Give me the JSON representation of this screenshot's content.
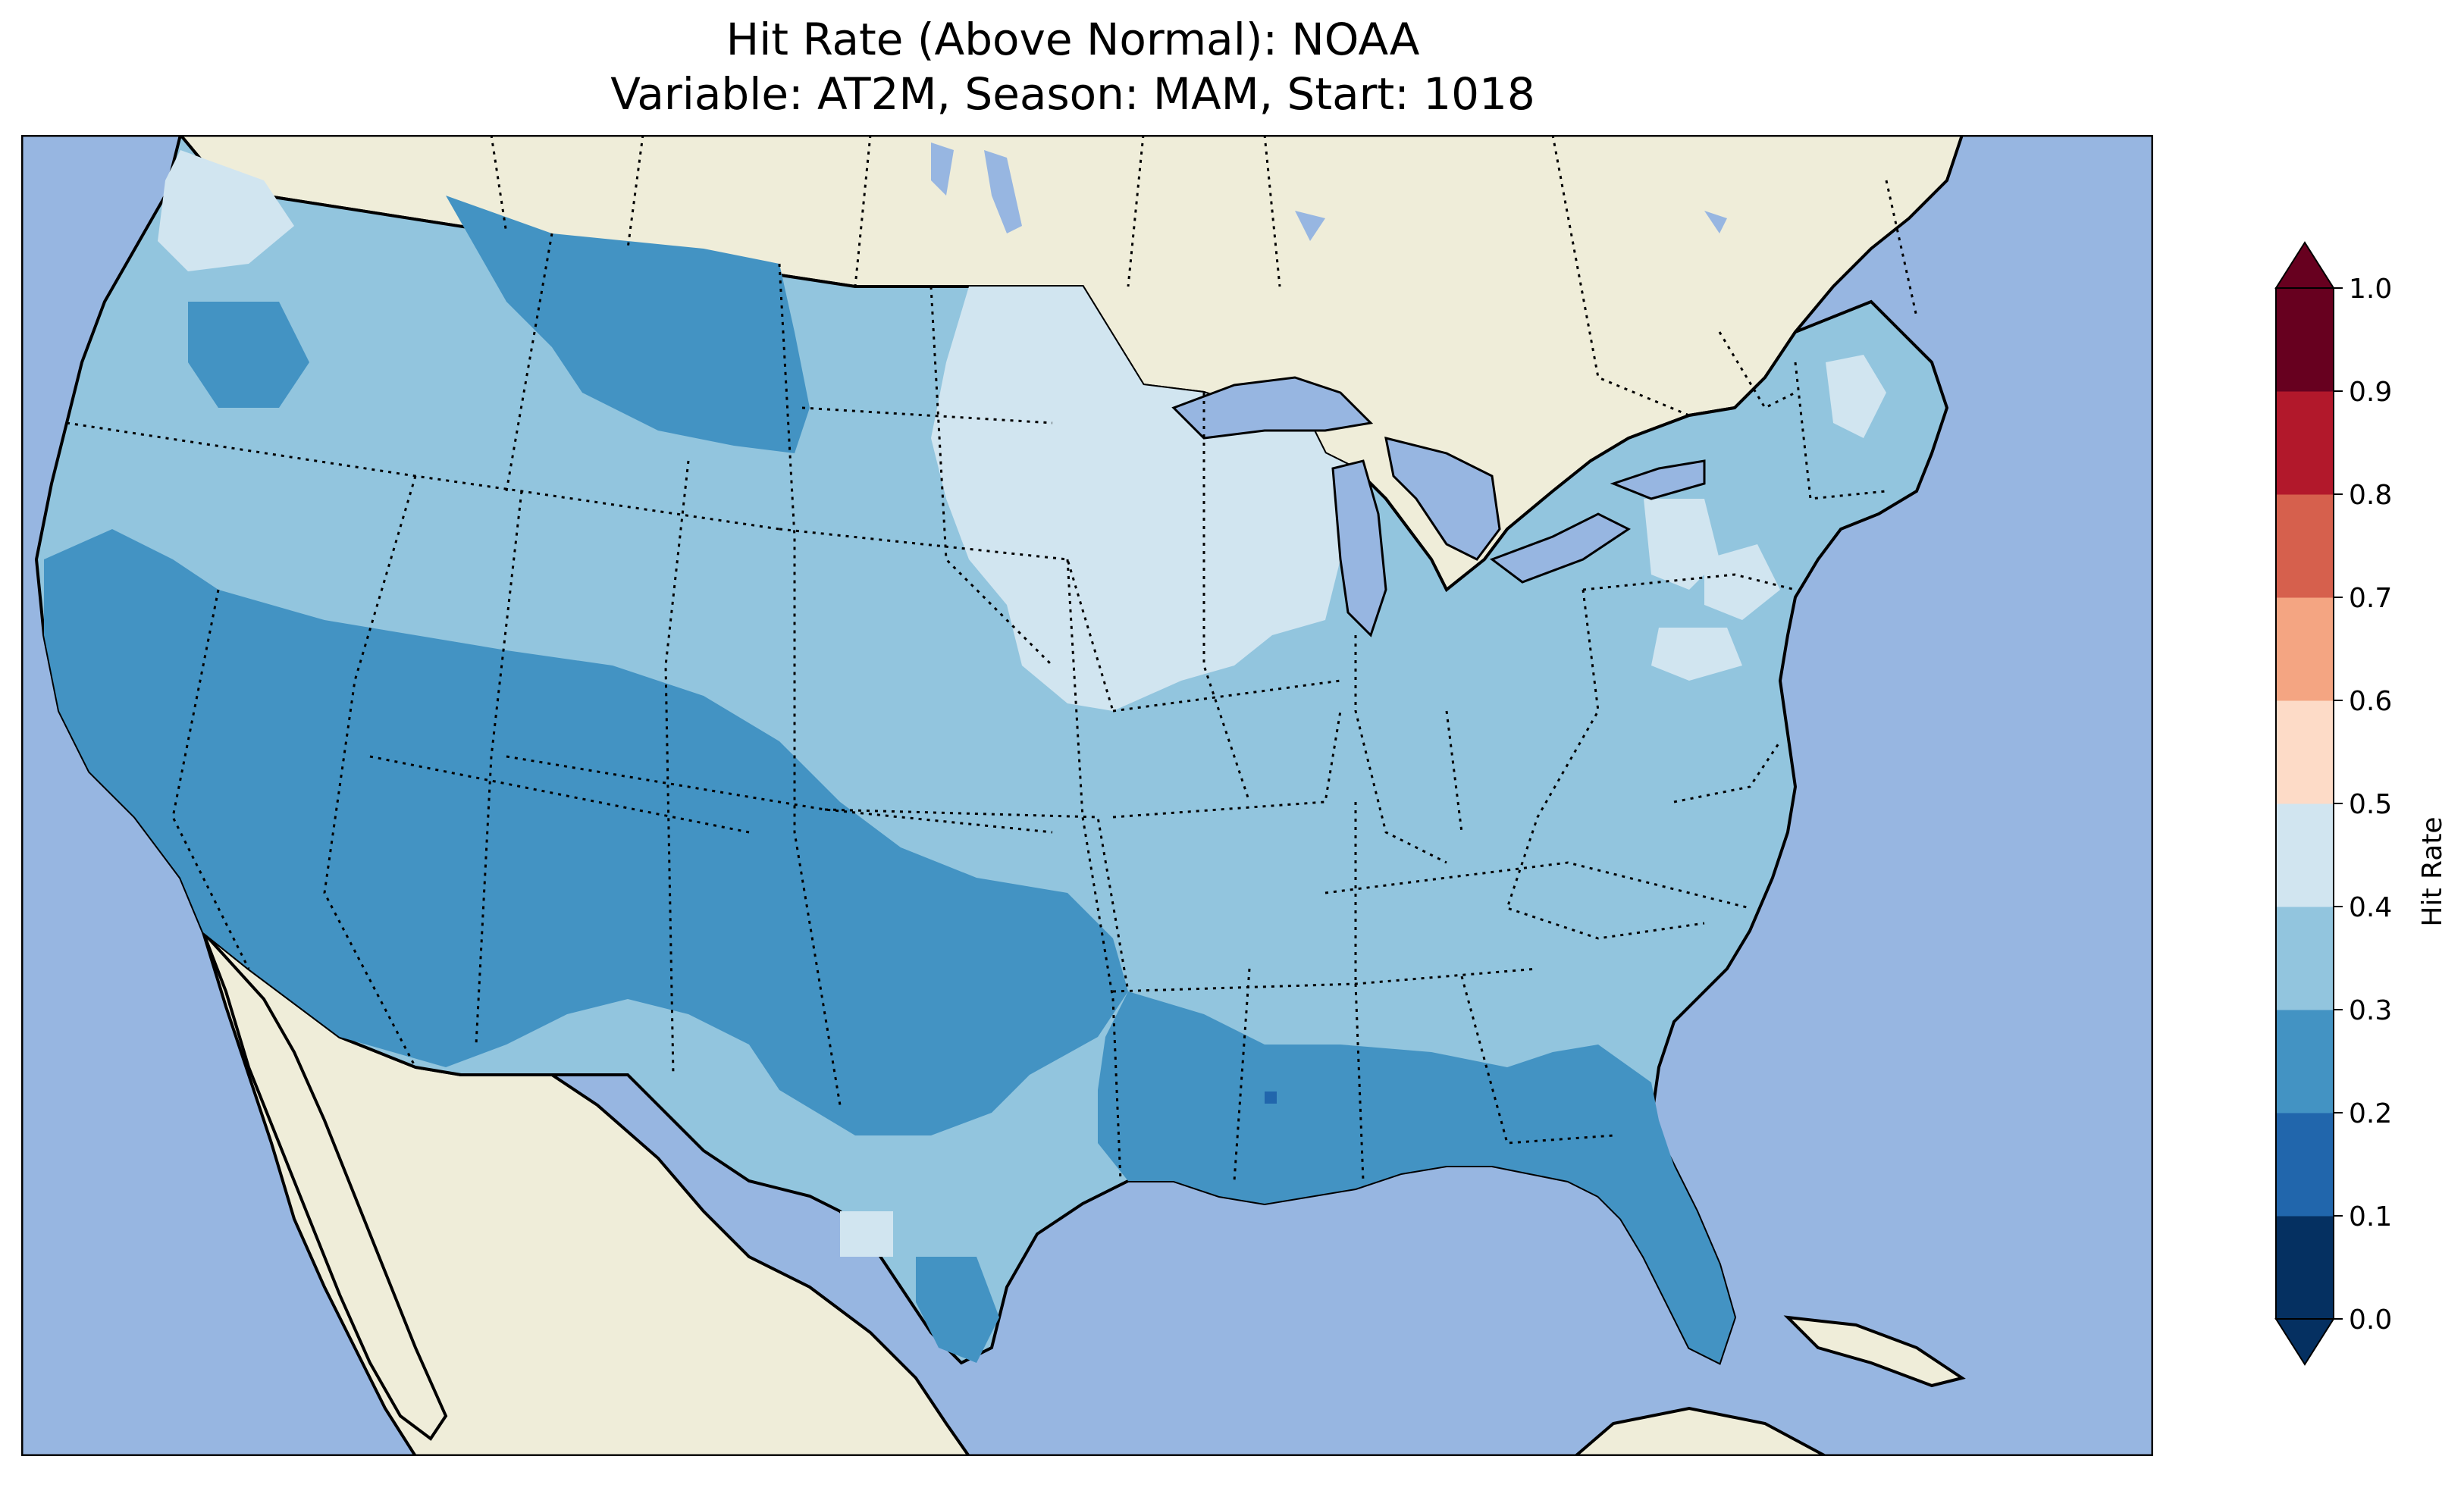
{
  "title": "Hit Rate (Above Normal): NOAA",
  "subtitle": "Variable: AT2M, Season: MAM, Start: 1018",
  "colorbar": {
    "label": "Hit Rate",
    "ticks": [
      "0.0",
      "0.1",
      "0.2",
      "0.3",
      "0.4",
      "0.5",
      "0.6",
      "0.7",
      "0.8",
      "0.9",
      "1.0"
    ],
    "colors": [
      "#053061",
      "#2166ac",
      "#4393c3",
      "#92c5de",
      "#d1e5f0",
      "#fddbc7",
      "#f4a582",
      "#d6604d",
      "#b2182b",
      "#67001f"
    ],
    "extend": "both"
  },
  "map": {
    "projection": "PlateCarree",
    "extent": [
      -125,
      -66,
      24,
      50
    ],
    "ocean_color": "#97b6e1",
    "land_color": "#efedd9"
  }
}
